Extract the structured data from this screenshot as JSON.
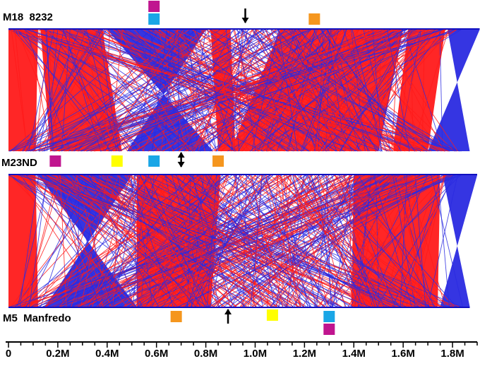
{
  "genomes": [
    {
      "id": "top",
      "label": "M18  8232"
    },
    {
      "id": "mid",
      "label": "M23ND"
    },
    {
      "id": "bot",
      "label": "M5  Manfredo"
    }
  ],
  "x_axis": {
    "min": 0,
    "max": 1900000,
    "unit_label": "M",
    "ticks": [
      {
        "value": 0,
        "label": "0"
      },
      {
        "value": 200000,
        "label": "0.2M"
      },
      {
        "value": 400000,
        "label": "0.4M"
      },
      {
        "value": 600000,
        "label": "0.6M"
      },
      {
        "value": 800000,
        "label": "0.8M"
      },
      {
        "value": 1000000,
        "label": "1.0M"
      },
      {
        "value": 1200000,
        "label": "1.2M"
      },
      {
        "value": 1400000,
        "label": "1.4M"
      },
      {
        "value": 1600000,
        "label": "1.6M"
      },
      {
        "value": 1800000,
        "label": "1.8M"
      }
    ]
  },
  "colors": {
    "forward": "#ff1a1a",
    "inverted": "#2a2ae0",
    "magenta": "#c0158f",
    "cyan": "#1aa6e6",
    "yellow": "#ffff00",
    "orange": "#f5961e"
  },
  "markers": [
    {
      "genome": "top",
      "type": "magenta",
      "pos": 590000
    },
    {
      "genome": "top",
      "type": "cyan",
      "pos": 590000
    },
    {
      "genome": "top",
      "type": "orange",
      "pos": 1240000
    },
    {
      "genome": "top",
      "type": "arrow-down",
      "pos": 960000
    },
    {
      "genome": "mid",
      "type": "magenta",
      "pos": 190000
    },
    {
      "genome": "mid",
      "type": "yellow",
      "pos": 440000
    },
    {
      "genome": "mid",
      "type": "cyan",
      "pos": 590000
    },
    {
      "genome": "mid",
      "type": "orange",
      "pos": 850000
    },
    {
      "genome": "mid",
      "type": "arrow-both",
      "pos": 700000
    },
    {
      "genome": "bot",
      "type": "orange",
      "pos": 680000
    },
    {
      "genome": "bot",
      "type": "arrow-up",
      "pos": 890000
    },
    {
      "genome": "bot",
      "type": "yellow",
      "pos": 1070000
    },
    {
      "genome": "bot",
      "type": "cyan",
      "pos": 1300000
    },
    {
      "genome": "bot",
      "type": "magenta",
      "pos": 1300000
    }
  ],
  "blocks": {
    "top_to_mid": [
      {
        "a": [
          0,
          120000
        ],
        "b": [
          0,
          110000
        ],
        "inv": false
      },
      {
        "a": [
          130000,
          380000
        ],
        "b": [
          170000,
          460000
        ],
        "inv": false
      },
      {
        "a": [
          400000,
          800000
        ],
        "b": [
          480000,
          830000
        ],
        "inv": true
      },
      {
        "a": [
          820000,
          900000
        ],
        "b": [
          850000,
          920000
        ],
        "inv": false
      },
      {
        "a": [
          1100000,
          1600000
        ],
        "b": [
          900000,
          1500000
        ],
        "inv": false
      },
      {
        "a": [
          1620000,
          1770000
        ],
        "b": [
          1560000,
          1700000
        ],
        "inv": false
      },
      {
        "a": [
          1780000,
          1910000
        ],
        "b": [
          1700000,
          1870000
        ],
        "inv": true
      }
    ],
    "mid_to_bot": [
      {
        "a": [
          0,
          110000
        ],
        "b": [
          0,
          120000
        ],
        "inv": false
      },
      {
        "a": [
          120000,
          500000
        ],
        "b": [
          150000,
          520000
        ],
        "inv": true
      },
      {
        "a": [
          520000,
          860000
        ],
        "b": [
          520000,
          820000
        ],
        "inv": false
      },
      {
        "a": [
          1400000,
          1750000
        ],
        "b": [
          1390000,
          1740000
        ],
        "inv": false
      },
      {
        "a": [
          1760000,
          1900000
        ],
        "b": [
          1750000,
          1870000
        ],
        "inv": true
      }
    ]
  }
}
